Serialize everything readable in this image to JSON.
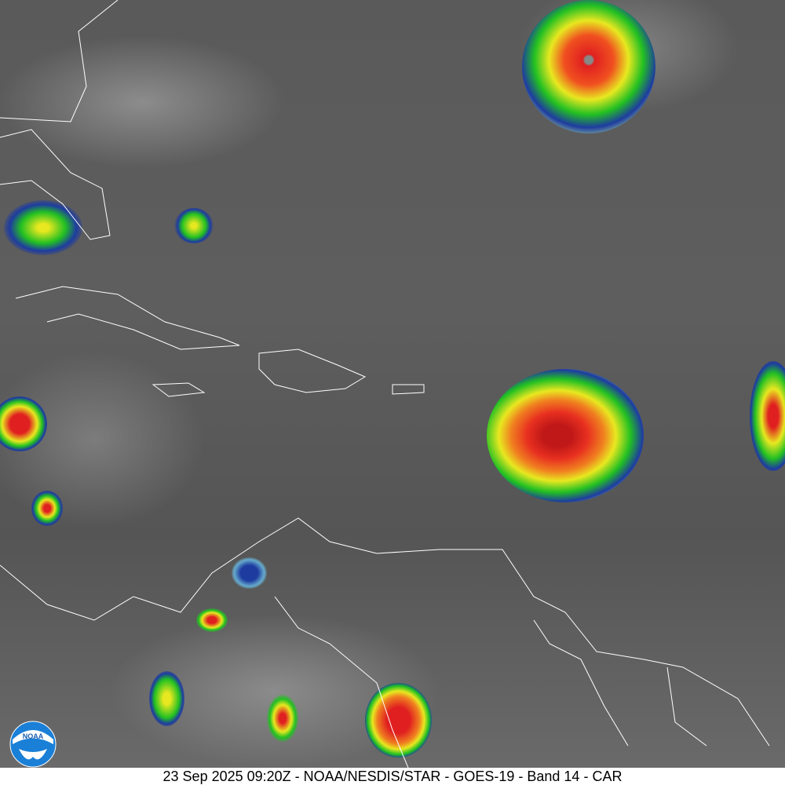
{
  "caption": "23 Sep 2025 09:20Z - NOAA/NESDIS/STAR - GOES-19 - Band 14 - CAR",
  "logo": {
    "text": "NOAA",
    "colors": {
      "blue": "#1a7fd6",
      "white": "#ffffff"
    }
  },
  "colors": {
    "background_gray": "#5c5c5c",
    "coastline": "#ffffff",
    "cold_tops": [
      "#1e3ca0",
      "#22c022",
      "#e8e820",
      "#e02020"
    ]
  }
}
